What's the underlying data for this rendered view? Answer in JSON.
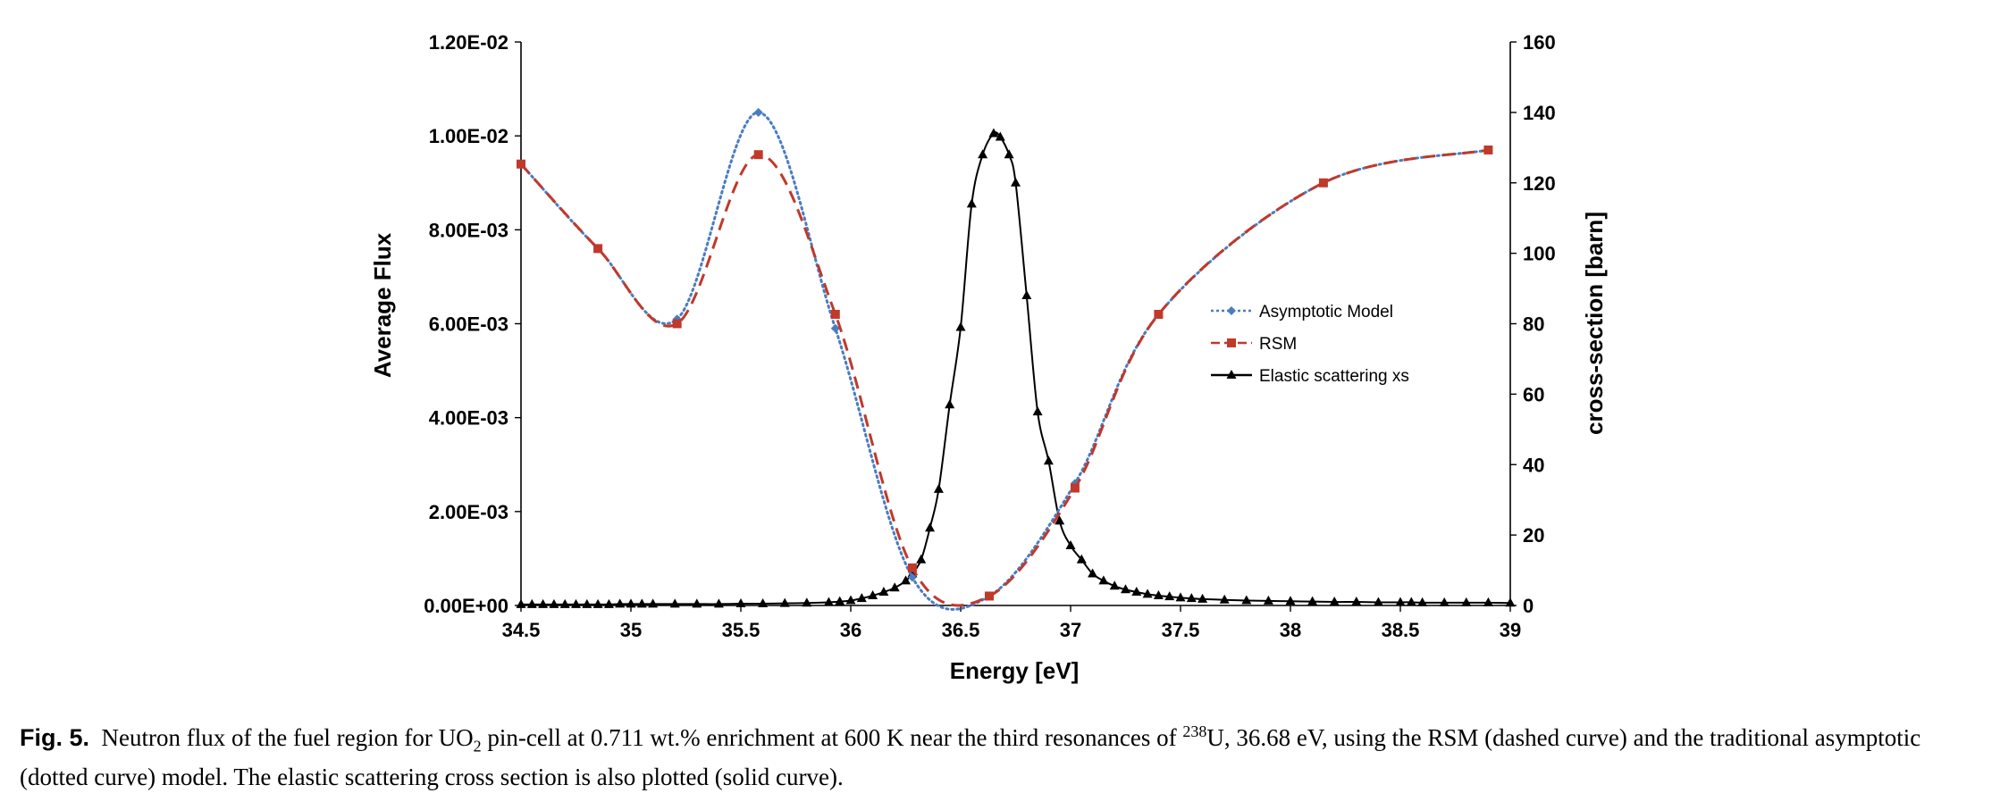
{
  "chart_data": {
    "type": "line",
    "xlabel": "Energy [eV]",
    "ylabel_left": "Average Flux",
    "ylabel_right": "cross-section [barn]",
    "xlim": [
      34.5,
      39
    ],
    "ylim_left": [
      0,
      0.012
    ],
    "ylim_right": [
      0,
      160
    ],
    "x_ticks": [
      "34.5",
      "35",
      "35.5",
      "36",
      "36.5",
      "37",
      "37.5",
      "38",
      "38.5",
      "39"
    ],
    "x_tick_values": [
      34.5,
      35,
      35.5,
      36,
      36.5,
      37,
      37.5,
      38,
      38.5,
      39
    ],
    "y_ticks_left": [
      "0.00E+00",
      "2.00E-03",
      "4.00E-03",
      "6.00E-03",
      "8.00E-03",
      "1.00E-02",
      "1.20E-02"
    ],
    "y_tick_values_left": [
      0,
      0.002,
      0.004,
      0.006,
      0.008,
      0.01,
      0.012
    ],
    "y_ticks_right": [
      "0",
      "20",
      "40",
      "60",
      "80",
      "100",
      "120",
      "140",
      "160"
    ],
    "y_tick_values_right": [
      0,
      20,
      40,
      60,
      80,
      100,
      120,
      140,
      160
    ],
    "grid": false,
    "legend_position": "center-right",
    "series": [
      {
        "name": "Asymptotic Model",
        "axis": "left",
        "style": "dotted",
        "color": "#4a7cc0",
        "marker": "diamond",
        "x": [
          34.5,
          34.85,
          35.21,
          35.58,
          35.93,
          36.28,
          36.63,
          37.02,
          37.4,
          38.15,
          38.9
        ],
        "y": [
          0.0094,
          0.0076,
          0.0061,
          0.0105,
          0.0059,
          0.0006,
          0.0002,
          0.0026,
          0.0062,
          0.009,
          0.0097
        ]
      },
      {
        "name": "RSM",
        "axis": "left",
        "style": "dashed",
        "color": "#c0392b",
        "marker": "square",
        "x": [
          34.5,
          34.85,
          35.21,
          35.58,
          35.93,
          36.28,
          36.63,
          37.02,
          37.4,
          38.15,
          38.9
        ],
        "y": [
          0.0094,
          0.0076,
          0.006,
          0.0096,
          0.0062,
          0.0008,
          0.0002,
          0.0025,
          0.0062,
          0.009,
          0.0097
        ]
      },
      {
        "name": "Elastic scattering xs",
        "axis": "right",
        "style": "solid",
        "color": "#000000",
        "marker": "triangle",
        "x": [
          34.5,
          34.55,
          34.6,
          34.65,
          34.7,
          34.75,
          34.8,
          34.85,
          34.9,
          34.95,
          35.0,
          35.05,
          35.1,
          35.2,
          35.3,
          35.4,
          35.5,
          35.6,
          35.7,
          35.8,
          35.9,
          35.95,
          36.0,
          36.05,
          36.1,
          36.15,
          36.2,
          36.25,
          36.28,
          36.32,
          36.36,
          36.4,
          36.45,
          36.5,
          36.55,
          36.6,
          36.65,
          36.68,
          36.72,
          36.75,
          36.8,
          36.85,
          36.9,
          36.95,
          37.0,
          37.05,
          37.1,
          37.15,
          37.2,
          37.25,
          37.3,
          37.35,
          37.4,
          37.45,
          37.5,
          37.55,
          37.6,
          37.7,
          37.8,
          37.9,
          38.0,
          38.1,
          38.2,
          38.3,
          38.4,
          38.5,
          38.55,
          38.6,
          38.7,
          38.8,
          38.9,
          39.0
        ],
        "y": [
          0.3,
          0.3,
          0.3,
          0.3,
          0.3,
          0.3,
          0.3,
          0.3,
          0.3,
          0.4,
          0.4,
          0.4,
          0.4,
          0.4,
          0.4,
          0.4,
          0.5,
          0.5,
          0.6,
          0.7,
          0.9,
          1.1,
          1.4,
          2.0,
          2.8,
          3.8,
          5.0,
          7.0,
          9.0,
          13.0,
          22.0,
          33.0,
          57.0,
          79.0,
          114.0,
          128.0,
          134.0,
          133.0,
          128.0,
          120.0,
          88.0,
          55.0,
          41.0,
          24.0,
          17.0,
          13.0,
          9.0,
          7.0,
          5.5,
          4.5,
          3.8,
          3.2,
          2.8,
          2.5,
          2.2,
          2.0,
          1.8,
          1.6,
          1.4,
          1.3,
          1.2,
          1.1,
          1.0,
          1.0,
          0.9,
          0.9,
          0.9,
          0.8,
          0.8,
          0.8,
          0.8,
          0.7
        ]
      }
    ]
  },
  "caption": {
    "label": "Fig. 5.",
    "t1": "Neutron flux of the fuel region for UO",
    "sub": "2",
    "t2": "pin-cell at 0.711 wt.% enrichment at 600 K near the third resonances of",
    "sup": "238",
    "t3": "U, 36.68 eV, using the RSM (dashed curve) and the traditional asymptotic (dotted curve) model. The elastic scattering cross section is also plotted (solid curve)."
  }
}
